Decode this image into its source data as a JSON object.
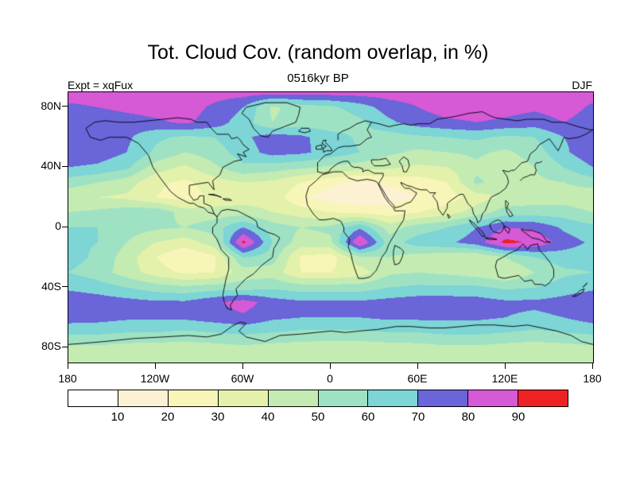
{
  "page": {
    "background": "#ffffff"
  },
  "chart_data": {
    "type": "heatmap",
    "title": "Tot. Cloud Cov. (random overlap, in %)",
    "subtitle": "0516kyr BP",
    "experiment_label": "Expt = xqFux",
    "season_label": "DJF",
    "variable": "Total cloud cover (random overlap)",
    "units": "%",
    "projection": "equirectangular",
    "lon_range": [
      -180,
      180
    ],
    "lat_range": [
      -90,
      90
    ],
    "xticks": [
      {
        "value": -180,
        "label": "180"
      },
      {
        "value": -120,
        "label": "120W"
      },
      {
        "value": -60,
        "label": "60W"
      },
      {
        "value": 0,
        "label": "0"
      },
      {
        "value": 60,
        "label": "60E"
      },
      {
        "value": 120,
        "label": "120E"
      },
      {
        "value": 180,
        "label": "180"
      }
    ],
    "yticks": [
      {
        "value": 80,
        "label": "80N"
      },
      {
        "value": 40,
        "label": "40N"
      },
      {
        "value": 0,
        "label": "0"
      },
      {
        "value": -40,
        "label": "40S"
      },
      {
        "value": -80,
        "label": "80S"
      }
    ],
    "colorbar": {
      "levels": [
        10,
        20,
        30,
        40,
        50,
        60,
        70,
        80,
        90
      ],
      "labels": [
        "10",
        "20",
        "30",
        "40",
        "50",
        "60",
        "70",
        "80",
        "90"
      ],
      "colors": [
        "#ffffff",
        "#fcf2d3",
        "#f8f5b8",
        "#e4f1ab",
        "#c3ebb2",
        "#9fe2c3",
        "#7dd5d5",
        "#6a65d8",
        "#d659d6",
        "#ee2222"
      ]
    },
    "grid": {
      "lons": [
        -180,
        -160,
        -140,
        -120,
        -100,
        -80,
        -60,
        -40,
        -20,
        0,
        20,
        40,
        60,
        80,
        100,
        120,
        140,
        160,
        180
      ],
      "lats": [
        90,
        80,
        70,
        60,
        50,
        40,
        30,
        20,
        10,
        0,
        -10,
        -20,
        -30,
        -40,
        -50,
        -60,
        -70,
        -80,
        -90
      ],
      "values_percent": [
        [
          85,
          85,
          85,
          85,
          85,
          85,
          85,
          85,
          85,
          85,
          85,
          85,
          85,
          85,
          85,
          85,
          85,
          85,
          85
        ],
        [
          78,
          80,
          83,
          85,
          85,
          78,
          70,
          48,
          55,
          58,
          65,
          75,
          80,
          85,
          86,
          84,
          82,
          85,
          78
        ],
        [
          75,
          72,
          75,
          78,
          82,
          75,
          65,
          50,
          55,
          52,
          58,
          68,
          75,
          78,
          80,
          78,
          75,
          80,
          75
        ],
        [
          75,
          78,
          72,
          62,
          58,
          60,
          68,
          75,
          72,
          65,
          58,
          55,
          58,
          60,
          62,
          58,
          60,
          70,
          75
        ],
        [
          78,
          76,
          70,
          58,
          50,
          55,
          65,
          74,
          72,
          66,
          60,
          52,
          48,
          50,
          52,
          48,
          55,
          68,
          78
        ],
        [
          70,
          68,
          62,
          45,
          38,
          48,
          58,
          55,
          52,
          48,
          45,
          42,
          38,
          40,
          48,
          42,
          50,
          60,
          70
        ],
        [
          55,
          50,
          45,
          32,
          28,
          35,
          40,
          38,
          30,
          22,
          18,
          22,
          25,
          30,
          52,
          45,
          48,
          50,
          55
        ],
        [
          42,
          40,
          38,
          30,
          25,
          32,
          35,
          35,
          22,
          15,
          12,
          15,
          20,
          25,
          35,
          42,
          45,
          45,
          42
        ],
        [
          50,
          52,
          56,
          58,
          45,
          45,
          45,
          40,
          35,
          30,
          28,
          25,
          30,
          35,
          45,
          55,
          55,
          55,
          50
        ],
        [
          60,
          60,
          55,
          52,
          50,
          55,
          70,
          55,
          50,
          52,
          68,
          45,
          55,
          60,
          70,
          80,
          78,
          68,
          62
        ],
        [
          62,
          60,
          50,
          40,
          35,
          45,
          93,
          60,
          45,
          48,
          91,
          55,
          65,
          68,
          75,
          93,
          88,
          75,
          68
        ],
        [
          64,
          58,
          45,
          30,
          20,
          28,
          60,
          55,
          28,
          25,
          48,
          50,
          45,
          42,
          40,
          50,
          60,
          65,
          64
        ],
        [
          60,
          55,
          45,
          35,
          28,
          30,
          45,
          45,
          30,
          30,
          35,
          48,
          50,
          48,
          45,
          40,
          50,
          58,
          60
        ],
        [
          68,
          65,
          60,
          55,
          52,
          55,
          55,
          58,
          55,
          55,
          55,
          60,
          62,
          62,
          62,
          58,
          60,
          65,
          68
        ],
        [
          78,
          76,
          74,
          72,
          72,
          78,
          85,
          75,
          72,
          72,
          72,
          74,
          76,
          76,
          75,
          72,
          72,
          74,
          78
        ],
        [
          75,
          74,
          72,
          72,
          72,
          75,
          78,
          72,
          70,
          70,
          70,
          72,
          72,
          72,
          72,
          70,
          68,
          70,
          75
        ],
        [
          62,
          62,
          60,
          60,
          58,
          60,
          62,
          60,
          58,
          58,
          58,
          60,
          60,
          62,
          62,
          60,
          58,
          60,
          62
        ],
        [
          48,
          48,
          46,
          45,
          45,
          46,
          48,
          46,
          45,
          44,
          44,
          45,
          46,
          48,
          48,
          46,
          45,
          46,
          48
        ],
        [
          42,
          42,
          42,
          42,
          42,
          42,
          42,
          42,
          42,
          42,
          42,
          42,
          42,
          42,
          42,
          42,
          42,
          42,
          42
        ]
      ]
    }
  }
}
